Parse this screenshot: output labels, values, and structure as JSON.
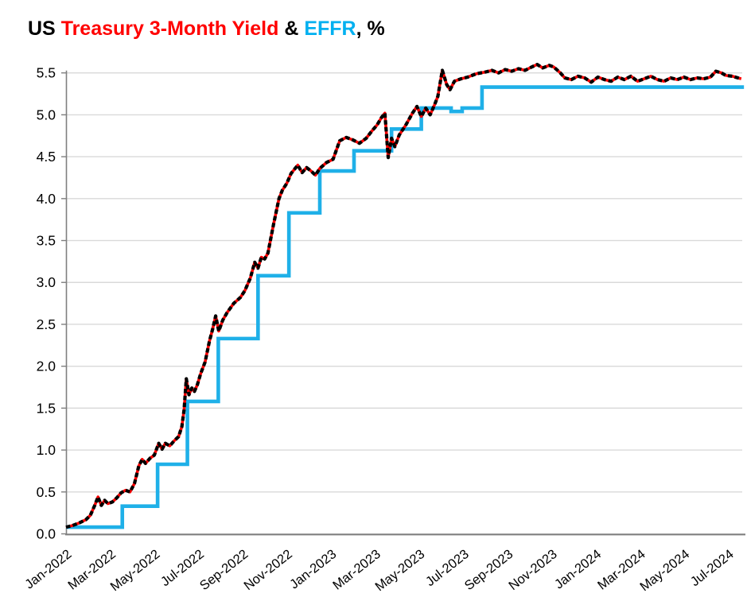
{
  "title": {
    "segments": [
      {
        "text": "US ",
        "color": "#000000"
      },
      {
        "text": "Treasury 3-Month Yield",
        "color": "#FF0000"
      },
      {
        "text": " & ",
        "color": "#000000"
      },
      {
        "text": "EFFR",
        "color": "#00B0F0"
      },
      {
        "text": ", %",
        "color": "#000000"
      }
    ],
    "full_text": "US Treasury 3-Month Yield & EFFR, %"
  },
  "chart_data": {
    "type": "line",
    "title": "US Treasury 3-Month Yield & EFFR, %",
    "xlabel": "",
    "ylabel": "",
    "grid": "horizontal",
    "legend_position": "none (colors encoded in title)",
    "ylim": [
      0,
      5.75
    ],
    "x_unit": "months since Jan-2022",
    "x_range": [
      0,
      30.72
    ],
    "y_tick_labels": [
      "0.0",
      "0.5",
      "1.0",
      "1.5",
      "2.0",
      "2.5",
      "3.0",
      "3.5",
      "4.0",
      "4.5",
      "5.0",
      "5.5"
    ],
    "y_ticks": [
      0,
      0.5,
      1,
      1.5,
      2,
      2.5,
      3,
      3.5,
      4,
      4.5,
      5,
      5.5
    ],
    "x_tick_positions": [
      0,
      2,
      4,
      6,
      8,
      10,
      12,
      14,
      16,
      18,
      20,
      22,
      24,
      26,
      28,
      30
    ],
    "x_tick_labels": [
      "Jan-2022",
      "Mar-2022",
      "May-2022",
      "Jul-2022",
      "Sep-2022",
      "Nov-2022",
      "Jan-2023",
      "Mar-2023",
      "May-2023",
      "Jul-2023",
      "Sep-2023",
      "Nov-2023",
      "Jan-2024",
      "Mar-2024",
      "May-2024",
      "Jul-2024"
    ],
    "series": [
      {
        "name": "US Treasury 3-Month Yield",
        "style": "line-with-black-dash-markers",
        "line_color": "#FF0000",
        "marker_color": "#000000",
        "points": [
          [
            0,
            0.08
          ],
          [
            0.3,
            0.1
          ],
          [
            0.6,
            0.13
          ],
          [
            0.9,
            0.17
          ],
          [
            1.1,
            0.22
          ],
          [
            1.3,
            0.34
          ],
          [
            1.45,
            0.44
          ],
          [
            1.6,
            0.34
          ],
          [
            1.75,
            0.4
          ],
          [
            1.9,
            0.36
          ],
          [
            2.1,
            0.38
          ],
          [
            2.3,
            0.43
          ],
          [
            2.5,
            0.49
          ],
          [
            2.7,
            0.52
          ],
          [
            2.9,
            0.5
          ],
          [
            3.1,
            0.6
          ],
          [
            3.3,
            0.81
          ],
          [
            3.45,
            0.89
          ],
          [
            3.6,
            0.84
          ],
          [
            3.8,
            0.9
          ],
          [
            4,
            0.94
          ],
          [
            4.2,
            1.08
          ],
          [
            4.35,
            1.01
          ],
          [
            4.5,
            1.08
          ],
          [
            4.7,
            1.05
          ],
          [
            4.9,
            1.11
          ],
          [
            5.1,
            1.16
          ],
          [
            5.25,
            1.28
          ],
          [
            5.35,
            1.48
          ],
          [
            5.45,
            1.85
          ],
          [
            5.57,
            1.66
          ],
          [
            5.7,
            1.74
          ],
          [
            5.82,
            1.7
          ],
          [
            5.95,
            1.78
          ],
          [
            6.1,
            1.91
          ],
          [
            6.3,
            2.05
          ],
          [
            6.5,
            2.3
          ],
          [
            6.65,
            2.45
          ],
          [
            6.78,
            2.6
          ],
          [
            6.92,
            2.42
          ],
          [
            7.1,
            2.55
          ],
          [
            7.3,
            2.64
          ],
          [
            7.6,
            2.75
          ],
          [
            7.9,
            2.82
          ],
          [
            8.1,
            2.9
          ],
          [
            8.35,
            3.05
          ],
          [
            8.55,
            3.24
          ],
          [
            8.7,
            3.17
          ],
          [
            8.85,
            3.3
          ],
          [
            9,
            3.28
          ],
          [
            9.15,
            3.35
          ],
          [
            9.4,
            3.69
          ],
          [
            9.65,
            4
          ],
          [
            9.8,
            4.1
          ],
          [
            10,
            4.18
          ],
          [
            10.2,
            4.3
          ],
          [
            10.5,
            4.4
          ],
          [
            10.7,
            4.31
          ],
          [
            10.9,
            4.37
          ],
          [
            11.1,
            4.33
          ],
          [
            11.3,
            4.28
          ],
          [
            11.5,
            4.36
          ],
          [
            11.8,
            4.43
          ],
          [
            12.1,
            4.47
          ],
          [
            12.4,
            4.69
          ],
          [
            12.7,
            4.73
          ],
          [
            13,
            4.7
          ],
          [
            13.3,
            4.66
          ],
          [
            13.6,
            4.72
          ],
          [
            13.9,
            4.82
          ],
          [
            14.1,
            4.88
          ],
          [
            14.3,
            4.97
          ],
          [
            14.45,
            5.02
          ],
          [
            14.6,
            4.49
          ],
          [
            14.75,
            4.72
          ],
          [
            14.9,
            4.62
          ],
          [
            15.1,
            4.76
          ],
          [
            15.4,
            4.88
          ],
          [
            15.7,
            5.02
          ],
          [
            15.9,
            5.1
          ],
          [
            16.1,
            4.98
          ],
          [
            16.3,
            5.08
          ],
          [
            16.5,
            5
          ],
          [
            16.7,
            5.12
          ],
          [
            16.85,
            5.22
          ],
          [
            17.05,
            5.53
          ],
          [
            17.25,
            5.36
          ],
          [
            17.4,
            5.3
          ],
          [
            17.6,
            5.4
          ],
          [
            17.9,
            5.43
          ],
          [
            18.2,
            5.45
          ],
          [
            18.6,
            5.49
          ],
          [
            19,
            5.51
          ],
          [
            19.3,
            5.53
          ],
          [
            19.6,
            5.5
          ],
          [
            19.9,
            5.54
          ],
          [
            20.2,
            5.52
          ],
          [
            20.5,
            5.55
          ],
          [
            20.8,
            5.53
          ],
          [
            21.1,
            5.57
          ],
          [
            21.35,
            5.6
          ],
          [
            21.6,
            5.56
          ],
          [
            21.9,
            5.59
          ],
          [
            22.1,
            5.57
          ],
          [
            22.4,
            5.5
          ],
          [
            22.6,
            5.44
          ],
          [
            22.9,
            5.42
          ],
          [
            23.2,
            5.46
          ],
          [
            23.5,
            5.44
          ],
          [
            23.8,
            5.39
          ],
          [
            24.1,
            5.45
          ],
          [
            24.4,
            5.42
          ],
          [
            24.7,
            5.4
          ],
          [
            25,
            5.45
          ],
          [
            25.3,
            5.42
          ],
          [
            25.6,
            5.46
          ],
          [
            25.9,
            5.4
          ],
          [
            26.2,
            5.43
          ],
          [
            26.5,
            5.46
          ],
          [
            26.8,
            5.42
          ],
          [
            27.1,
            5.4
          ],
          [
            27.4,
            5.44
          ],
          [
            27.7,
            5.42
          ],
          [
            28,
            5.45
          ],
          [
            28.3,
            5.42
          ],
          [
            28.6,
            5.44
          ],
          [
            28.9,
            5.43
          ],
          [
            29.2,
            5.45
          ],
          [
            29.45,
            5.52
          ],
          [
            29.7,
            5.5
          ],
          [
            29.9,
            5.47
          ],
          [
            30.2,
            5.46
          ],
          [
            30.45,
            5.44
          ],
          [
            30.6,
            5.43
          ]
        ]
      },
      {
        "name": "EFFR",
        "style": "step-after",
        "line_color": "#1FB0E8",
        "x_end": 30.72,
        "points": [
          [
            0,
            0.08
          ],
          [
            2.55,
            0.33
          ],
          [
            4.15,
            0.83
          ],
          [
            5.5,
            1.58
          ],
          [
            6.9,
            2.33
          ],
          [
            8.7,
            3.08
          ],
          [
            10.1,
            3.83
          ],
          [
            11.5,
            4.33
          ],
          [
            13.05,
            4.57
          ],
          [
            14.75,
            4.83
          ],
          [
            16.1,
            5.08
          ],
          [
            17.45,
            5.04
          ],
          [
            17.95,
            5.08
          ],
          [
            18.85,
            5.33
          ]
        ]
      }
    ]
  },
  "colors": {
    "background": "#FFFFFF",
    "gridline": "#D9D9D9",
    "axis": "#7F7F7F",
    "tick_label": "#000000",
    "treasury_red": "#FF0000",
    "treasury_marker_black": "#000000",
    "effr_cyan": "#1FB0E8",
    "title_effr_cyan": "#00B0F0"
  }
}
